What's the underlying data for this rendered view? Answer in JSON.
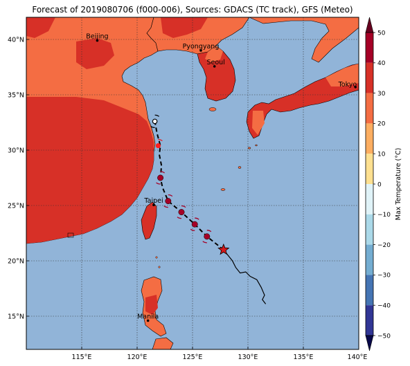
{
  "title": "Forecast of 2019080706 (f000-006), Sources: GDACS (TC track), GFS (Meteo)",
  "colorbar": {
    "label": "Max Temperature (°C)",
    "ticks": [
      "50",
      "40",
      "30",
      "20",
      "10",
      "0",
      "−10",
      "−20",
      "−30",
      "−40",
      "−50"
    ],
    "levels": [
      {
        "range": "40 to 50",
        "color": "#a50026"
      },
      {
        "range": "30 to 40",
        "color": "#d73027"
      },
      {
        "range": "20 to 30",
        "color": "#f46d43"
      },
      {
        "range": "10 to 20",
        "color": "#fdae61"
      },
      {
        "range": "0 to 10",
        "color": "#fee090"
      },
      {
        "range": "-10 to 0",
        "color": "#e0f3f8"
      },
      {
        "range": "-20 to -10",
        "color": "#abd9e9"
      },
      {
        "range": "-30 to -20",
        "color": "#74add1"
      },
      {
        "range": "-40 to -30",
        "color": "#4575b4"
      },
      {
        "range": "-50 to -40",
        "color": "#313695"
      }
    ]
  },
  "axes": {
    "lon_labels": [
      "115°E",
      "120°E",
      "125°E",
      "130°E",
      "135°E",
      "140°E"
    ],
    "lat_labels": [
      "40°N",
      "35°N",
      "30°N",
      "25°N",
      "20°N",
      "15°N"
    ]
  },
  "cities": [
    "Beijing",
    "Pyongyang",
    "Seoul",
    "Tokyo",
    "Taipei",
    "Manila"
  ],
  "colors": {
    "ocean": "#91b4d8",
    "land_warm": "#f46d43",
    "land_hot": "#d73027",
    "track_past": "#000000",
    "storm_marker": "#a50026",
    "current_position": "#d7191c"
  }
}
